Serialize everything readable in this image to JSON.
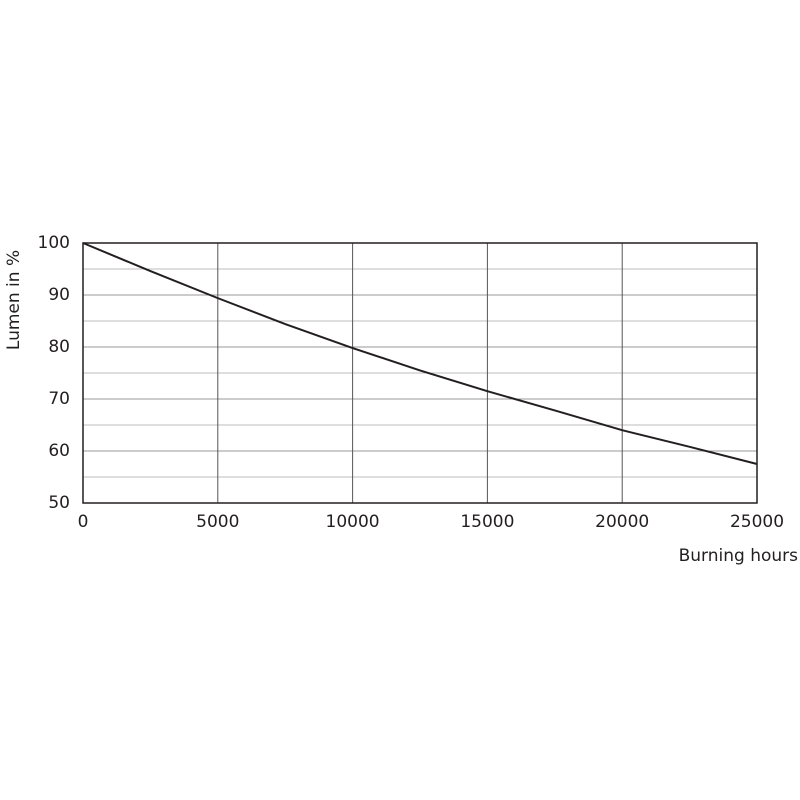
{
  "chart_data": {
    "type": "line",
    "x_label": "Burning hours",
    "y_label": "Lumen in %",
    "x": [
      0,
      2500,
      5000,
      7500,
      10000,
      12500,
      15000,
      17500,
      20000,
      22500,
      25000
    ],
    "series": [
      {
        "color": "#231f20",
        "values": [
          100,
          94.6,
          89.4,
          84.4,
          79.8,
          75.5,
          71.5,
          67.8,
          64.0,
          60.8,
          57.5
        ]
      }
    ],
    "xlim": [
      0,
      25000
    ],
    "xticks": [
      0,
      5000,
      10000,
      15000,
      20000,
      25000
    ],
    "ylim": [
      50,
      100
    ],
    "yticks": [
      50,
      60,
      70,
      80,
      90,
      100
    ],
    "yminor": [
      55,
      65,
      75,
      85,
      95
    ],
    "grid": true
  }
}
